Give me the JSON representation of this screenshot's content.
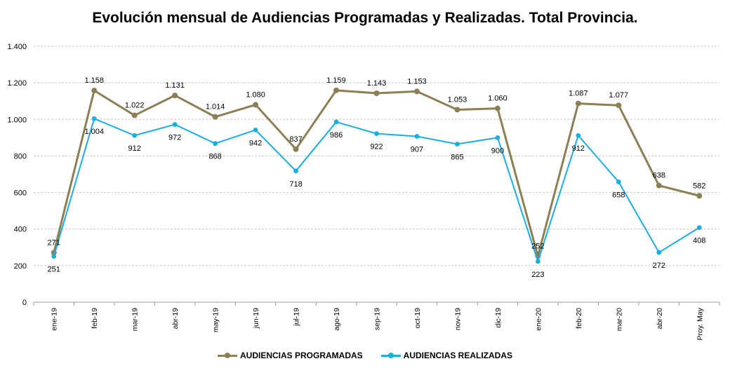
{
  "chart_data": {
    "type": "line",
    "title": "Evolución mensual de Audiencias Programadas y Realizadas. Total Provincia.",
    "xlabel": "",
    "ylabel": "",
    "ylim": [
      0,
      1400
    ],
    "yticks": [
      0,
      200,
      400,
      600,
      800,
      1000,
      1200,
      1400
    ],
    "ytick_labels": [
      "0",
      "200",
      "400",
      "600",
      "800",
      "1.000",
      "1.200",
      "1.400"
    ],
    "grid": true,
    "legend_position": "bottom",
    "categories": [
      "ene-19",
      "feb-19",
      "mar-19",
      "abr-19",
      "may-19",
      "jun-19",
      "jul-19",
      "ago-19",
      "sep-19",
      "oct-19",
      "nov-19",
      "dic-19",
      "ene-20",
      "feb-20",
      "mar-20",
      "abr-20",
      "Proy. May"
    ],
    "series": [
      {
        "name": "AUDIENCIAS PROGRAMADAS",
        "color": "#8C7F55",
        "values": [
          271,
          1158,
          1022,
          1131,
          1014,
          1080,
          837,
          1159,
          1143,
          1153,
          1053,
          1060,
          252,
          1087,
          1077,
          638,
          582
        ],
        "labels": [
          "271",
          "1.158",
          "1.022",
          "1.131",
          "1.014",
          "1.080",
          "837",
          "1.159",
          "1.143",
          "1.153",
          "1.053",
          "1.060",
          "252",
          "1.087",
          "1.077",
          "638",
          "582"
        ]
      },
      {
        "name": "AUDIENCIAS REALIZADAS",
        "color": "#1AADE0",
        "values": [
          251,
          1004,
          912,
          972,
          868,
          942,
          718,
          986,
          922,
          907,
          865,
          900,
          223,
          912,
          658,
          272,
          408
        ],
        "labels": [
          "251",
          "1.004",
          "912",
          "972",
          "868",
          "942",
          "718",
          "986",
          "922",
          "907",
          "865",
          "900",
          "223",
          "912",
          "658",
          "272",
          "408"
        ]
      }
    ]
  }
}
